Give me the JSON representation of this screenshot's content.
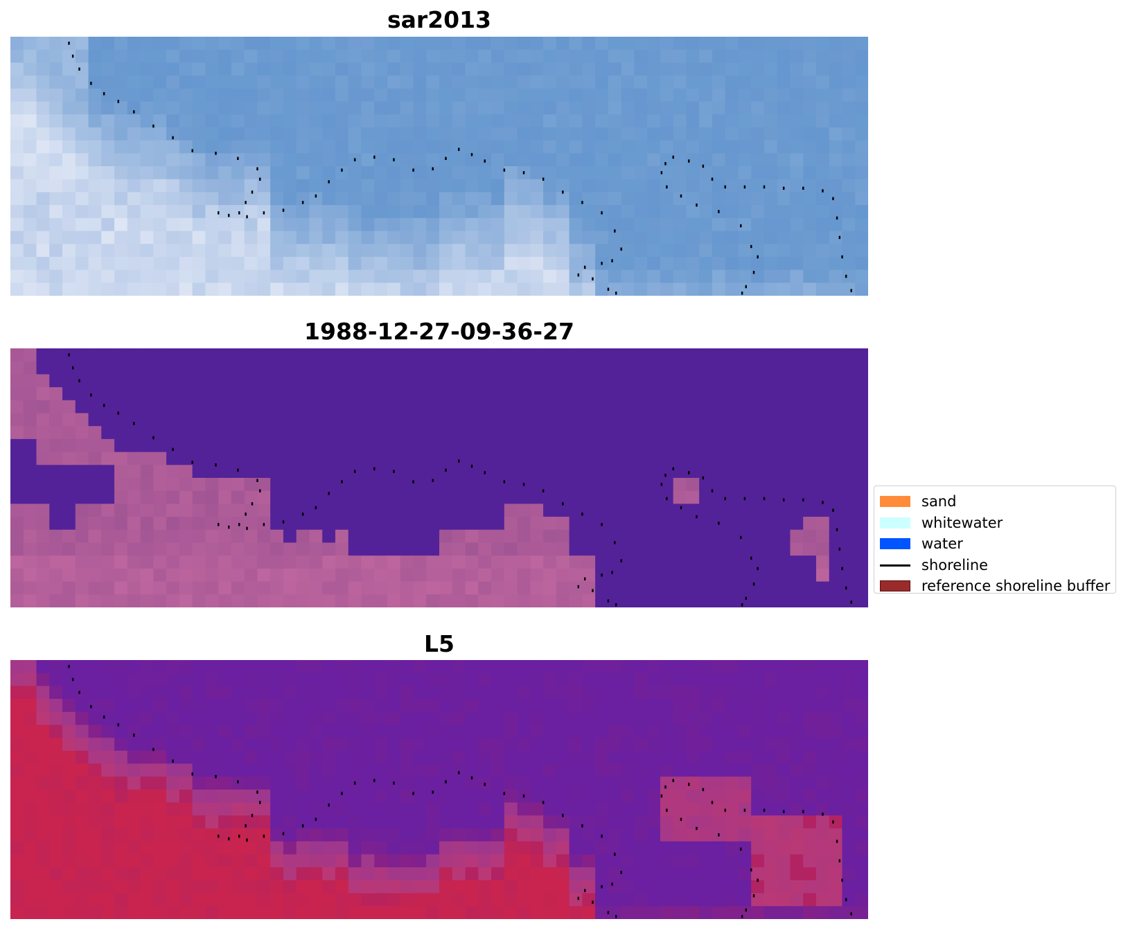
{
  "panels": [
    {
      "title": "sar2013",
      "scheme": "sar"
    },
    {
      "title": "1988-12-27-09-36-27",
      "scheme": "class"
    },
    {
      "title": "L5",
      "scheme": "mndwi"
    }
  ],
  "legend": {
    "items": [
      {
        "label": "sand",
        "kind": "patch",
        "color": "#ff8c3a"
      },
      {
        "label": "whitewater",
        "kind": "patch",
        "color": "#ccffff"
      },
      {
        "label": "water",
        "kind": "patch",
        "color": "#0055ff"
      },
      {
        "label": "shoreline",
        "kind": "line",
        "color": "#000000"
      },
      {
        "label": "reference shoreline buffer",
        "kind": "patch",
        "color": "#9b2b2b"
      }
    ]
  },
  "colors": {
    "class_water": "#532298",
    "class_land": "#a25594",
    "class_land_light": "#c0679f",
    "sar_base": "#6a9bd0",
    "sar_light": "#e8ecf8",
    "mndwi_water": "#6a20a0",
    "mndwi_land": "#c8244f",
    "shoreline_dots": "#000000"
  }
}
